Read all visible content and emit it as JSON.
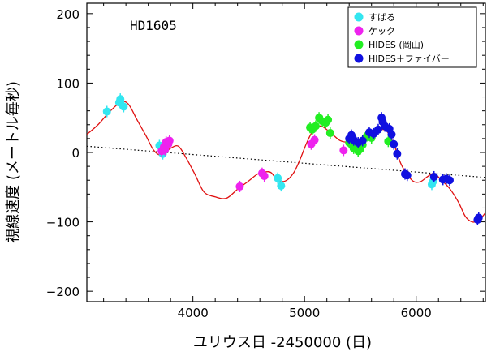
{
  "chart_data": {
    "type": "scatter",
    "annotation": "HD1605",
    "xlabel": "ユリウス日 -2450000 (日)",
    "ylabel": "視線速度 (メートル毎秒)",
    "xlim": [
      3050,
      6620
    ],
    "ylim": [
      -215,
      215
    ],
    "x_ticks": [
      4000,
      5000,
      6000
    ],
    "y_ticks": [
      200,
      100,
      0,
      -100,
      -200
    ],
    "y_tick_labels": [
      "200",
      "100",
      "0",
      "−100",
      "−200"
    ],
    "legend_position": "top-right",
    "series": [
      {
        "name": "すばる",
        "color": "#33e6f0",
        "points": [
          [
            3230,
            59
          ],
          [
            3340,
            72
          ],
          [
            3350,
            77
          ],
          [
            3380,
            66
          ],
          [
            3700,
            10
          ],
          [
            3730,
            -2
          ],
          [
            4760,
            -37
          ],
          [
            4790,
            -48
          ],
          [
            6140,
            -46
          ],
          [
            6150,
            -42
          ]
        ]
      },
      {
        "name": "ケック",
        "color": "#ee22ee",
        "points": [
          [
            3720,
            2
          ],
          [
            3740,
            8
          ],
          [
            3760,
            15
          ],
          [
            3780,
            12
          ],
          [
            3790,
            17
          ],
          [
            3750,
            4
          ],
          [
            4420,
            -49
          ],
          [
            4620,
            -30
          ],
          [
            4640,
            -34
          ],
          [
            5060,
            12
          ],
          [
            5090,
            18
          ],
          [
            5350,
            3
          ]
        ]
      },
      {
        "name": "HIDES (岡山)",
        "color": "#22ee22",
        "points": [
          [
            5050,
            36
          ],
          [
            5070,
            33
          ],
          [
            5100,
            38
          ],
          [
            5130,
            50
          ],
          [
            5160,
            45
          ],
          [
            5190,
            43
          ],
          [
            5210,
            47
          ],
          [
            5230,
            28
          ],
          [
            5400,
            14
          ],
          [
            5420,
            12
          ],
          [
            5440,
            6
          ],
          [
            5460,
            10
          ],
          [
            5480,
            2
          ],
          [
            5500,
            5
          ],
          [
            5520,
            11
          ],
          [
            5560,
            24
          ],
          [
            5600,
            21
          ],
          [
            5750,
            16
          ]
        ]
      },
      {
        "name": "HIDES＋ファイバー",
        "color": "#1010e0",
        "points": [
          [
            5400,
            20
          ],
          [
            5420,
            25
          ],
          [
            5430,
            22
          ],
          [
            5440,
            18
          ],
          [
            5480,
            14
          ],
          [
            5520,
            17
          ],
          [
            5580,
            29
          ],
          [
            5620,
            27
          ],
          [
            5660,
            33
          ],
          [
            5690,
            50
          ],
          [
            5700,
            44
          ],
          [
            5720,
            38
          ],
          [
            5760,
            34
          ],
          [
            5780,
            26
          ],
          [
            5800,
            12
          ],
          [
            5830,
            -2
          ],
          [
            5900,
            -31
          ],
          [
            5920,
            -33
          ],
          [
            6160,
            -35
          ],
          [
            6240,
            -39
          ],
          [
            6270,
            -38
          ],
          [
            6300,
            -40
          ],
          [
            6550,
            -97
          ],
          [
            6560,
            -94
          ]
        ]
      }
    ],
    "model_curve": {
      "color": "#e01010",
      "points": [
        [
          3050,
          26
        ],
        [
          3150,
          40
        ],
        [
          3250,
          58
        ],
        [
          3350,
          72
        ],
        [
          3420,
          70
        ],
        [
          3500,
          47
        ],
        [
          3580,
          24
        ],
        [
          3650,
          3
        ],
        [
          3720,
          -4
        ],
        [
          3800,
          6
        ],
        [
          3870,
          9
        ],
        [
          3940,
          -8
        ],
        [
          4020,
          -32
        ],
        [
          4100,
          -57
        ],
        [
          4200,
          -64
        ],
        [
          4300,
          -66
        ],
        [
          4400,
          -53
        ],
        [
          4500,
          -41
        ],
        [
          4580,
          -31
        ],
        [
          4650,
          -28
        ],
        [
          4700,
          -29
        ],
        [
          4760,
          -40
        ],
        [
          4830,
          -41
        ],
        [
          4900,
          -30
        ],
        [
          4960,
          -10
        ],
        [
          5020,
          14
        ],
        [
          5080,
          32
        ],
        [
          5150,
          38
        ],
        [
          5250,
          26
        ],
        [
          5320,
          17
        ],
        [
          5400,
          15
        ],
        [
          5500,
          20
        ],
        [
          5600,
          28
        ],
        [
          5680,
          33
        ],
        [
          5740,
          30
        ],
        [
          5800,
          12
        ],
        [
          5860,
          -15
        ],
        [
          5920,
          -32
        ],
        [
          5980,
          -42
        ],
        [
          6040,
          -42
        ],
        [
          6100,
          -35
        ],
        [
          6160,
          -30
        ],
        [
          6220,
          -39
        ],
        [
          6300,
          -52
        ],
        [
          6380,
          -72
        ],
        [
          6440,
          -92
        ],
        [
          6500,
          -100
        ],
        [
          6560,
          -98
        ],
        [
          6620,
          -87
        ]
      ]
    },
    "trend_line": {
      "color": "#000000",
      "style": "dotted",
      "points": [
        [
          3050,
          9
        ],
        [
          6620,
          -36
        ]
      ]
    }
  }
}
